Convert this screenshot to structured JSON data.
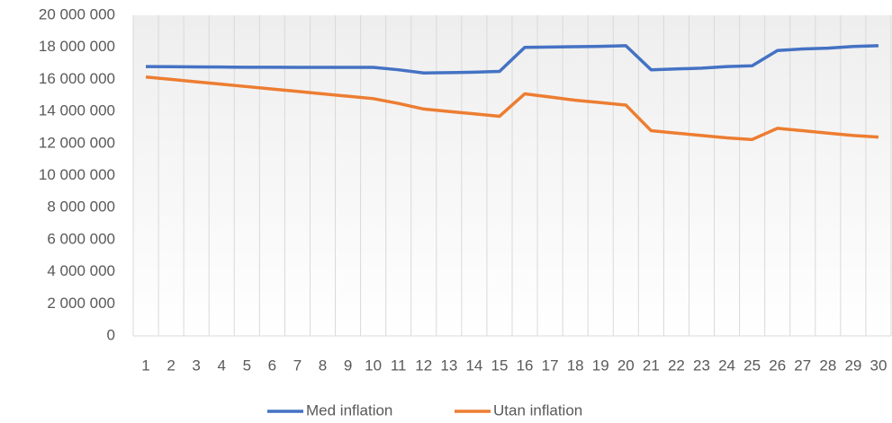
{
  "chart_data": {
    "type": "line",
    "categories": [
      1,
      2,
      3,
      4,
      5,
      6,
      7,
      8,
      9,
      10,
      11,
      12,
      13,
      14,
      15,
      16,
      17,
      18,
      19,
      20,
      21,
      22,
      23,
      24,
      25,
      26,
      27,
      28,
      29,
      30
    ],
    "series": [
      {
        "name": "Med inflation",
        "color": "#4472c4",
        "values": [
          16800000,
          16790000,
          16780000,
          16770000,
          16760000,
          16760000,
          16750000,
          16750000,
          16750000,
          16750000,
          16600000,
          16400000,
          16420000,
          16450000,
          16500000,
          18000000,
          18020000,
          18040000,
          18060000,
          18100000,
          16600000,
          16650000,
          16700000,
          16800000,
          16850000,
          17800000,
          17900000,
          17950000,
          18050000,
          18100000
        ]
      },
      {
        "name": "Utan inflation",
        "color": "#ed7d31",
        "values": [
          16150000,
          16000000,
          15850000,
          15700000,
          15550000,
          15400000,
          15250000,
          15100000,
          14950000,
          14800000,
          14500000,
          14150000,
          14000000,
          13850000,
          13700000,
          15100000,
          14900000,
          14700000,
          14550000,
          14400000,
          12800000,
          12650000,
          12500000,
          12350000,
          12250000,
          12950000,
          12800000,
          12650000,
          12500000,
          12400000
        ]
      }
    ],
    "ylim": [
      0,
      20000000
    ],
    "yticks": [
      0,
      {
        "value": 2000000,
        "label": "2 000 000"
      },
      {
        "value": 4000000,
        "label": "4 000 000"
      },
      {
        "value": 6000000,
        "label": "6 000 000"
      },
      {
        "value": 8000000,
        "label": "8 000 000"
      },
      {
        "value": 10000000,
        "label": "10 000 000"
      },
      {
        "value": 12000000,
        "label": "12 000 000"
      },
      {
        "value": 14000000,
        "label": "14 000 000"
      },
      {
        "value": 16000000,
        "label": "16 000 000"
      },
      {
        "value": 18000000,
        "label": "18 000 000"
      },
      {
        "value": 20000000,
        "label": "20 000 000"
      }
    ],
    "grid": true,
    "legend": "bottom"
  }
}
